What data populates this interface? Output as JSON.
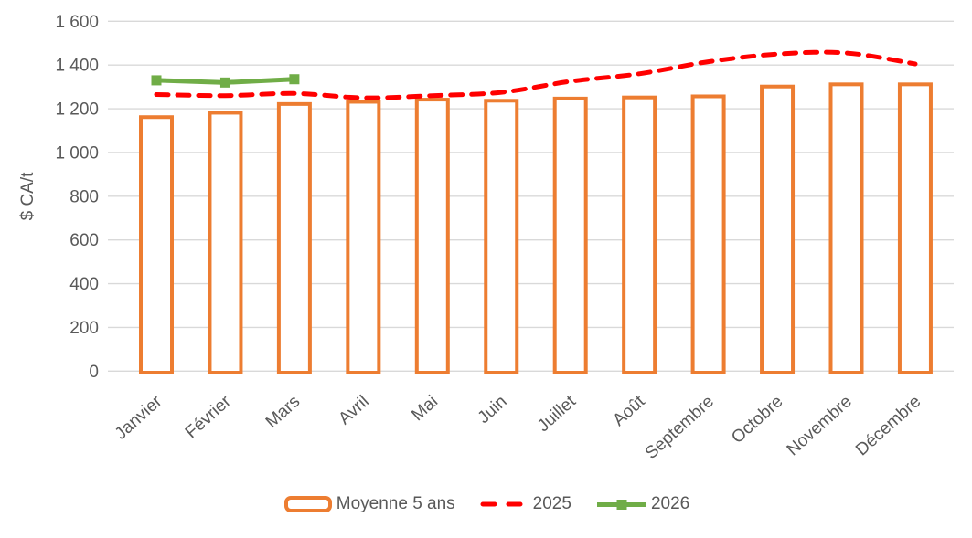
{
  "chart_data": {
    "type": "combo",
    "title": "",
    "ylabel": "$ CA/t",
    "categories": [
      "Janvier",
      "Février",
      "Mars",
      "Avril",
      "Mai",
      "Juin",
      "Juillet",
      "Août",
      "Septembre",
      "Octobre",
      "Novembre",
      "Décembre"
    ],
    "y_axis": {
      "min": 0,
      "max": 1600,
      "step": 200,
      "tick_labels": [
        "0",
        "200",
        "400",
        "600",
        "800",
        "1 000",
        "1 200",
        "1 400",
        "1 600"
      ]
    },
    "grid": true,
    "legend_position": "bottom",
    "series": [
      {
        "name": "Moyenne 5 ans",
        "type": "bar",
        "color": "#ED7D31",
        "fill": "#FFFFFF",
        "values": [
          1170,
          1190,
          1230,
          1240,
          1250,
          1245,
          1255,
          1260,
          1265,
          1310,
          1320,
          1320
        ]
      },
      {
        "name": "2025",
        "type": "line",
        "style": "dashed",
        "color": "#FF0000",
        "values": [
          1265,
          1260,
          1270,
          1250,
          1260,
          1275,
          1325,
          1360,
          1415,
          1450,
          1455,
          1405
        ]
      },
      {
        "name": "2026",
        "type": "line",
        "style": "solid-square-markers",
        "color": "#70AD47",
        "values": [
          1330,
          1320,
          1335,
          null,
          null,
          null,
          null,
          null,
          null,
          null,
          null,
          null
        ]
      }
    ],
    "text_color": "#595959",
    "gridline_color": "#D9D9D9"
  }
}
